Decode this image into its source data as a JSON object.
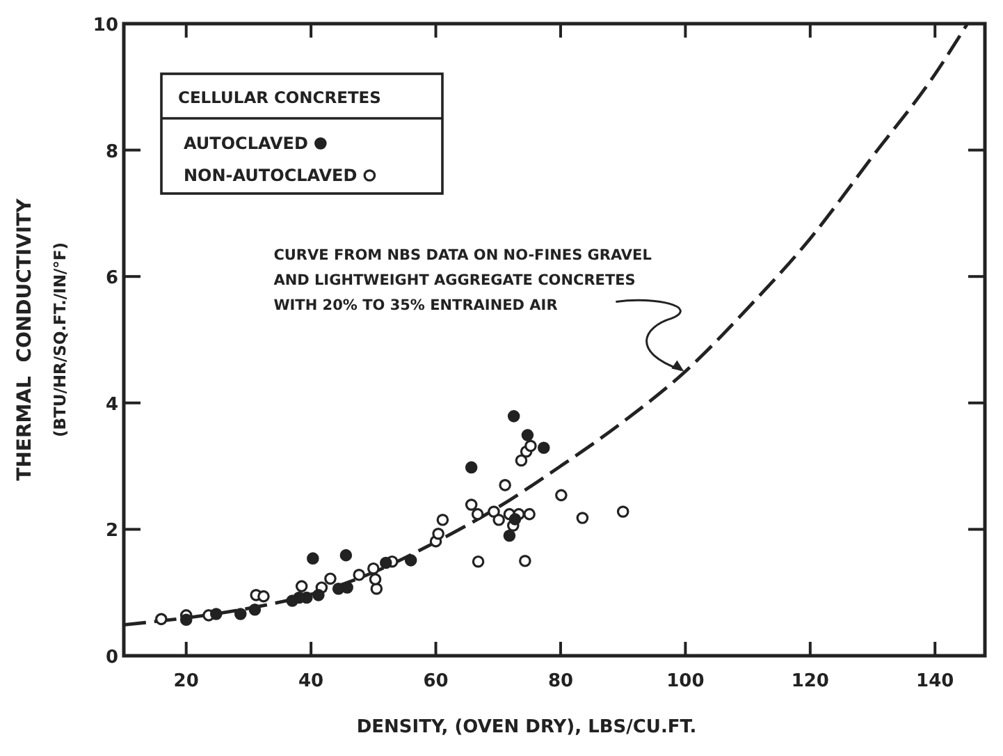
{
  "chart_data": {
    "type": "scatter",
    "xlabel": "DENSITY, (OVEN DRY), LBS/CU.FT.",
    "ylabel": "THERMAL  CONDUCTIVITY\n(BTU/HR/SQ.FT./IN/°F)",
    "legend_title": "CELLULAR CONCRETES",
    "legend": "top left",
    "xlim": [
      10,
      148
    ],
    "xticks": [
      20,
      40,
      60,
      80,
      100,
      120,
      140
    ],
    "ylim": [
      0,
      10
    ],
    "yticks": [
      0,
      2,
      4,
      6,
      8,
      10
    ],
    "annotations": [
      {
        "text": "CURVE FROM NBS DATA ON NO-FINES GRAVEL\nAND LIGHTWEIGHT AGGREGATE CONCRETES\nWITH 20% TO 35% ENTRAINED AIR",
        "x": 100,
        "y": 4.5
      }
    ],
    "series": [
      {
        "name": "AUTOCLAVED",
        "marker": "circle",
        "color": "#222222",
        "x": [
          40.3,
          45.6,
          56,
          65.7,
          72.5,
          74.7,
          77.3,
          71.8,
          28.7,
          31,
          37,
          38.1,
          39.3,
          41.2,
          44.4,
          45.8,
          52,
          24.8,
          20,
          72.7
        ],
        "values": [
          1.54,
          1.59,
          1.51,
          2.98,
          3.79,
          3.49,
          3.29,
          1.9,
          0.66,
          0.73,
          0.87,
          0.92,
          0.92,
          0.96,
          1.06,
          1.08,
          1.47,
          0.66,
          0.57,
          2.16
        ]
      },
      {
        "name": "NON-AUTOCLAVED",
        "marker": "circle",
        "color": "#ffffff",
        "x": [
          16,
          20,
          23.6,
          31.2,
          32.4,
          38.5,
          41.7,
          43.1,
          47.7,
          50,
          50.5,
          50.3,
          53,
          60,
          60.4,
          61.1,
          65.7,
          66.7,
          66.8,
          69.3,
          70.1,
          71.1,
          71.8,
          72.4,
          73.3,
          75,
          73.7,
          74.5,
          75.2,
          74.3,
          80.1,
          83.5,
          90
        ],
        "values": [
          0.58,
          0.64,
          0.64,
          0.96,
          0.94,
          1.1,
          1.08,
          1.22,
          1.28,
          1.38,
          1.06,
          1.21,
          1.49,
          1.81,
          1.93,
          2.15,
          2.39,
          2.24,
          1.49,
          2.28,
          2.15,
          2.7,
          2.24,
          2.06,
          2.24,
          2.24,
          3.09,
          3.23,
          3.32,
          1.5,
          2.54,
          2.18,
          2.28
        ]
      },
      {
        "type": "line",
        "line_style": "dashed",
        "color": "#222222",
        "x": [
          10,
          20,
          30,
          40,
          50,
          60,
          70,
          80,
          90,
          100,
          110,
          120,
          130,
          140,
          145.2
        ],
        "values": [
          0.49,
          0.6,
          0.75,
          0.97,
          1.32,
          1.8,
          2.35,
          3.0,
          3.7,
          4.5,
          5.5,
          6.6,
          7.9,
          9.2,
          10
        ]
      }
    ]
  }
}
